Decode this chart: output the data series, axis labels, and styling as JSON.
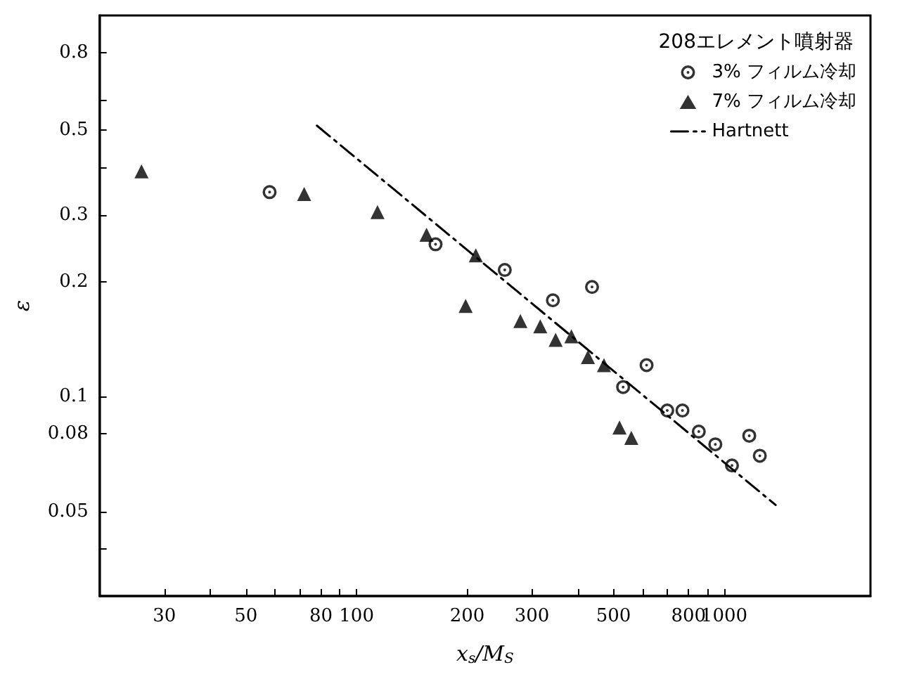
{
  "chart_data": {
    "type": "scatter",
    "xlabel": "x$_{s}$/M$_{S}$",
    "ylabel": "ε",
    "legend_title": "208エレメント噴射器",
    "log": "xy",
    "grid": false,
    "legend": "top right",
    "xlim": [
      20,
      2500
    ],
    "ylim": [
      0.03,
      1
    ],
    "xticks": [
      30,
      {
        "value": 40,
        "label": null
      },
      50,
      {
        "value": 60,
        "label": null
      },
      {
        "value": 70,
        "label": null
      },
      80,
      {
        "value": 90,
        "label": null
      },
      100,
      200,
      300,
      {
        "value": 400,
        "label": null
      },
      500,
      {
        "value": 600,
        "label": null
      },
      {
        "value": 700,
        "label": null
      },
      800,
      {
        "value": 900,
        "label": null
      },
      1000
    ],
    "yticks": [
      {
        "value": 0.04,
        "label": null
      },
      0.05,
      0.08,
      0.1,
      0.2,
      0.3,
      {
        "value": 0.4,
        "label": null
      },
      0.5,
      {
        "value": 0.6,
        "label": null
      },
      0.8
    ],
    "series": [
      {
        "name": "3% フィルム冷却",
        "marker": "circle",
        "color": "#000000",
        "x": [
          58,
          164,
          253,
          342,
          437,
          615,
          531,
          700,
          770,
          853,
          946,
          1050,
          1170,
          1250
        ],
        "values": [
          0.344,
          0.251,
          0.215,
          0.179,
          0.194,
          0.121,
          0.106,
          0.092,
          0.092,
          0.081,
          0.075,
          0.066,
          0.079,
          0.07
        ]
      },
      {
        "name": "7% フィルム冷却",
        "marker": "triangle",
        "color": "#000000",
        "x": [
          26,
          72,
          114,
          155,
          211,
          198,
          279,
          316,
          348,
          384,
          426,
          471,
          519,
          559
        ],
        "values": [
          0.39,
          0.34,
          0.305,
          0.266,
          0.235,
          0.173,
          0.158,
          0.153,
          0.141,
          0.144,
          0.127,
          0.121,
          0.083,
          0.078
        ]
      },
      {
        "name": "Hartnett",
        "type": "line",
        "marker": "none",
        "line_style": "dashed",
        "color": "#000000",
        "x": [
          78,
          1380
        ],
        "values": [
          0.514,
          0.052
        ]
      }
    ]
  }
}
